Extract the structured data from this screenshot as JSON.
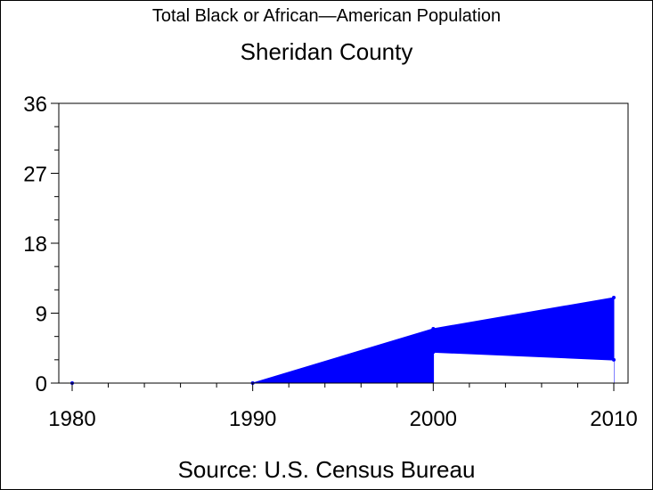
{
  "chart_data": {
    "type": "area",
    "title": "Total Black or African—American Population",
    "subtitle": "Sheridan County",
    "footnote": "Source: U.S. Census Bureau",
    "x": [
      1980,
      1990,
      2000,
      2010
    ],
    "x_tick_labels": [
      "1980",
      "1990",
      "2000",
      "2010"
    ],
    "y_tick_labels": [
      "0",
      "9",
      "18",
      "27",
      "36"
    ],
    "xlim": [
      1980,
      2010
    ],
    "ylim": [
      0,
      36
    ],
    "grid": false,
    "fill_color": "#0000ff",
    "series": [
      {
        "values": [
          0,
          0,
          7,
          11
        ]
      },
      {
        "values": [
          null,
          null,
          4,
          3
        ]
      }
    ],
    "band": {
      "x": [
        2000,
        2010
      ],
      "upper": [
        7,
        11
      ],
      "lower": [
        4,
        3
      ]
    }
  }
}
